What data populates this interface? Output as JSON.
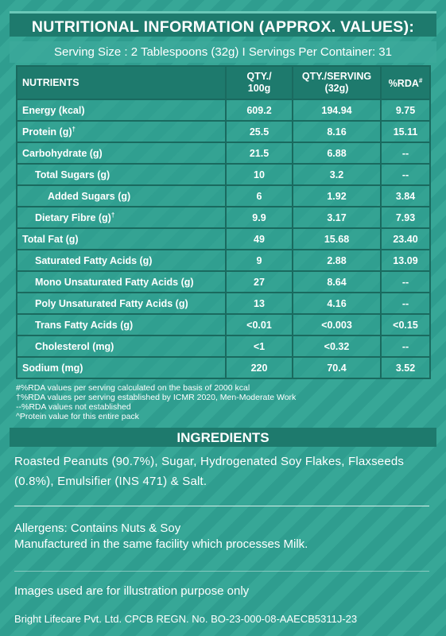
{
  "header": {
    "title": "NUTRITIONAL INFORMATION (APPROX. VALUES):",
    "serving": "Serving Size : 2 Tablespoons (32g) I Servings Per Container: 31"
  },
  "table": {
    "columns": [
      {
        "lines": [
          "NUTRIENTS"
        ]
      },
      {
        "lines": [
          "QTY./",
          "100g"
        ]
      },
      {
        "lines": [
          "QTY./SERVING",
          "(32g)"
        ]
      },
      {
        "lines": [
          "%RDA"
        ],
        "sup": "#"
      }
    ],
    "rows": [
      {
        "nutrient": "Energy (kcal)",
        "per_100g": "609.2",
        "per_serving": "194.94",
        "rda": "9.75"
      },
      {
        "nutrient": "Protein (g)",
        "sup": "†",
        "per_100g": "25.5",
        "per_serving": "8.16",
        "rda": "15.11"
      },
      {
        "nutrient": "Carbohydrate (g)",
        "per_100g": "21.5",
        "per_serving": "6.88",
        "rda": "--"
      },
      {
        "nutrient": "Total Sugars (g)",
        "per_100g": "10",
        "per_serving": "3.2",
        "rda": "--"
      },
      {
        "nutrient": "Added Sugars (g)",
        "per_100g": "6",
        "per_serving": "1.92",
        "rda": "3.84"
      },
      {
        "nutrient": "Dietary Fibre (g)",
        "sup": "†",
        "per_100g": "9.9",
        "per_serving": "3.17",
        "rda": "7.93"
      },
      {
        "nutrient": "Total Fat (g)",
        "per_100g": "49",
        "per_serving": "15.68",
        "rda": "23.40"
      },
      {
        "nutrient": "Saturated Fatty Acids (g)",
        "per_100g": "9",
        "per_serving": "2.88",
        "rda": "13.09"
      },
      {
        "nutrient": "Mono Unsaturated Fatty Acids (g)",
        "per_100g": "27",
        "per_serving": "8.64",
        "rda": "--"
      },
      {
        "nutrient": "Poly Unsaturated Fatty Acids (g)",
        "per_100g": "13",
        "per_serving": "4.16",
        "rda": "--"
      },
      {
        "nutrient": "Trans Fatty Acids (g)",
        "per_100g": "<0.01",
        "per_serving": "<0.003",
        "rda": "<0.15"
      },
      {
        "nutrient": "Cholesterol (mg)",
        "per_100g": "<1",
        "per_serving": "<0.32",
        "rda": "--"
      },
      {
        "nutrient": "Sodium (mg)",
        "per_100g": "220",
        "per_serving": "70.4",
        "rda": "3.52"
      }
    ]
  },
  "footnotes": [
    "#%RDA values per serving calculated on the basis of 2000 kcal",
    "†%RDA values per serving established by ICMR 2020, Men-Moderate Work",
    "--%RDA values not established",
    "^Protein value for this entire pack"
  ],
  "ingredients": {
    "title": "INGREDIENTS",
    "text": "Roasted Peanuts (90.7%), Sugar, Hydrogenated Soy Flakes, Flaxseeds (0.8%), Emulsifier (INS 471) & Salt."
  },
  "allergens": [
    "Allergens: Contains Nuts & Soy",
    "Manufactured in the same facility which processes Milk."
  ],
  "disclaimer": "Images used are for illustration purpose only",
  "footer": "Bright Lifecare Pvt. Ltd. CPCB REGN. No. BO-23-000-08-AAECB5311J-23"
}
